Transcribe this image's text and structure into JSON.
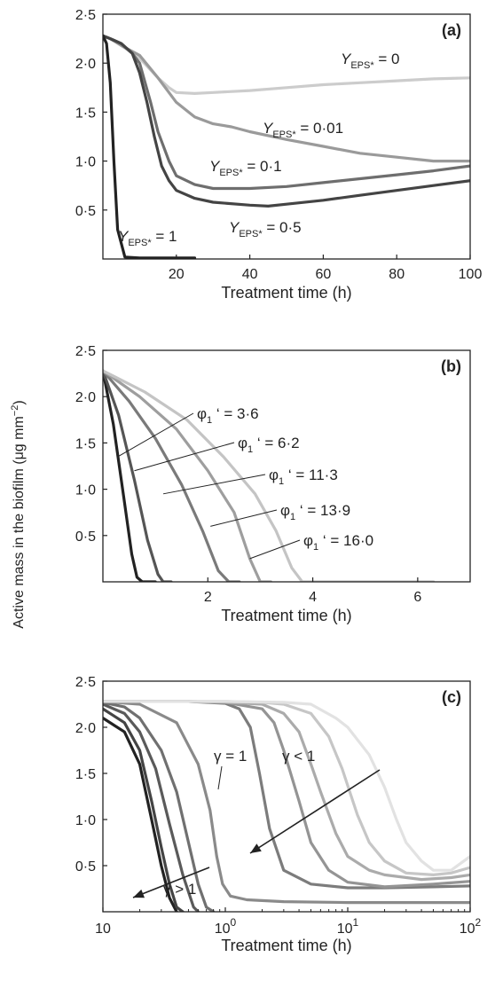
{
  "ylabel": "Active mass in the biofilm (μg mm",
  "ylabel_sup": "−2",
  "ylabel_close": ")",
  "colors": {
    "axis": "#222222",
    "series_dark": "#222222",
    "series_light": "#e6e6e6"
  },
  "chart_data": [
    {
      "type": "line",
      "panel_label": "(a)",
      "xlabel": "Treatment time (h)",
      "xlim": [
        0,
        100
      ],
      "ylim": [
        0,
        2.5
      ],
      "x_scale": "linear",
      "xticks": [
        20,
        40,
        60,
        80,
        100
      ],
      "xtick_labels": [
        "20",
        "40",
        "60",
        "80",
        "100"
      ],
      "yticks": [
        0.5,
        1.0,
        1.5,
        2.0,
        2.5
      ],
      "ytick_labels": [
        "0·5",
        "1·0",
        "1·5",
        "2·0",
        "2·5"
      ],
      "series": [
        {
          "label_main": "Y",
          "label_sub": "EPS*",
          "label_value": "= 0",
          "color": "#cccccc",
          "x": [
            0,
            2,
            5,
            10,
            15,
            18,
            20,
            25,
            30,
            40,
            50,
            60,
            70,
            80,
            90,
            100
          ],
          "y": [
            2.28,
            2.25,
            2.18,
            2.05,
            1.85,
            1.75,
            1.7,
            1.69,
            1.7,
            1.72,
            1.75,
            1.78,
            1.8,
            1.82,
            1.84,
            1.85
          ]
        },
        {
          "label_main": "Y",
          "label_sub": "EPS*",
          "label_value": "= 0·01",
          "color": "#9a9a9a",
          "x": [
            0,
            2,
            5,
            10,
            15,
            20,
            25,
            30,
            35,
            40,
            50,
            60,
            70,
            80,
            90,
            100
          ],
          "y": [
            2.28,
            2.25,
            2.18,
            2.08,
            1.85,
            1.6,
            1.45,
            1.38,
            1.35,
            1.3,
            1.22,
            1.15,
            1.08,
            1.04,
            1.0,
            1.0
          ]
        },
        {
          "label_main": "Y",
          "label_sub": "EPS*",
          "label_value": "= 0·1",
          "color": "#6e6e6e",
          "x": [
            0,
            2,
            5,
            8,
            10,
            13,
            15,
            18,
            20,
            25,
            30,
            40,
            50,
            60,
            70,
            80,
            90,
            100
          ],
          "y": [
            2.28,
            2.25,
            2.2,
            2.1,
            2.0,
            1.6,
            1.3,
            1.0,
            0.85,
            0.76,
            0.72,
            0.72,
            0.74,
            0.78,
            0.82,
            0.86,
            0.9,
            0.95
          ]
        },
        {
          "label_main": "Y",
          "label_sub": "EPS*",
          "label_value": "= 0·5",
          "color": "#444444",
          "x": [
            0,
            2,
            5,
            8,
            10,
            12,
            14,
            16,
            18,
            20,
            25,
            30,
            40,
            45,
            50,
            60,
            70,
            80,
            90,
            100
          ],
          "y": [
            2.28,
            2.25,
            2.2,
            2.1,
            1.9,
            1.6,
            1.25,
            0.95,
            0.8,
            0.7,
            0.62,
            0.58,
            0.55,
            0.54,
            0.56,
            0.6,
            0.65,
            0.7,
            0.75,
            0.8
          ]
        },
        {
          "label_main": "Y",
          "label_sub": "EPS*",
          "label_value": "= 1",
          "color": "#222222",
          "x": [
            0,
            1,
            2,
            3,
            4,
            6,
            10,
            20,
            25
          ],
          "y": [
            2.28,
            2.2,
            1.8,
            1.0,
            0.3,
            0.02,
            0.01,
            0.01,
            0.01
          ]
        }
      ]
    },
    {
      "type": "line",
      "panel_label": "(b)",
      "xlabel": "Treatment time (h)",
      "xlim": [
        0,
        7
      ],
      "ylim": [
        0,
        2.5
      ],
      "x_scale": "linear",
      "xticks": [
        2,
        4,
        6
      ],
      "xtick_labels": [
        "2",
        "4",
        "6"
      ],
      "yticks": [
        0.5,
        1.0,
        1.5,
        2.0,
        2.5
      ],
      "ytick_labels": [
        "0·5",
        "1·0",
        "1·5",
        "2·0",
        "2·5"
      ],
      "series": [
        {
          "label_main": "φ",
          "label_sub": "1",
          "label_value": "‘ = 3·6",
          "color": "#222222",
          "x": [
            0,
            0.2,
            0.4,
            0.55,
            0.65,
            0.75,
            1.0
          ],
          "y": [
            2.28,
            1.7,
            0.9,
            0.3,
            0.05,
            0.0,
            0.0
          ]
        },
        {
          "label_main": "φ",
          "label_sub": "1",
          "label_value": "‘ = 6·2",
          "color": "#555555",
          "x": [
            0,
            0.3,
            0.6,
            0.85,
            1.05,
            1.15,
            1.3
          ],
          "y": [
            2.28,
            1.8,
            1.1,
            0.45,
            0.08,
            0.0,
            0.0
          ]
        },
        {
          "label_main": "φ",
          "label_sub": "1",
          "label_value": "‘ = 11·3",
          "color": "#7a7a7a",
          "x": [
            0,
            0.5,
            1.0,
            1.5,
            1.9,
            2.2,
            2.4,
            2.6
          ],
          "y": [
            2.28,
            1.95,
            1.55,
            1.05,
            0.55,
            0.12,
            0.0,
            0.0
          ]
        },
        {
          "label_main": "φ",
          "label_sub": "1",
          "label_value": "‘ = 13·9",
          "color": "#9e9e9e",
          "x": [
            0,
            0.7,
            1.4,
            2.0,
            2.5,
            2.8,
            3.0,
            3.2
          ],
          "y": [
            2.28,
            2.0,
            1.65,
            1.2,
            0.75,
            0.25,
            0.0,
            0.0
          ]
        },
        {
          "label_main": "φ",
          "label_sub": "1",
          "label_value": "‘ = 16·0",
          "color": "#c4c4c4",
          "x": [
            0,
            0.8,
            1.6,
            2.3,
            2.9,
            3.3,
            3.6,
            3.8,
            4.5,
            6.3
          ],
          "y": [
            2.28,
            2.05,
            1.75,
            1.35,
            0.95,
            0.55,
            0.15,
            0.0,
            0.0,
            0.0
          ]
        }
      ]
    },
    {
      "type": "line",
      "panel_label": "(c)",
      "xlabel": "Treatment time (h)",
      "xlim": [
        0.1,
        100
      ],
      "ylim": [
        0,
        2.5
      ],
      "x_scale": "log",
      "xticks": [
        0.1,
        1,
        10,
        100
      ],
      "xtick_labels": [
        {
          "base": "10",
          "exp": ""
        },
        {
          "base": "10",
          "exp": "0"
        },
        {
          "base": "10",
          "exp": "1"
        },
        {
          "base": "10",
          "exp": "2"
        }
      ],
      "yticks": [
        0.5,
        1.0,
        1.5,
        2.0,
        2.5
      ],
      "ytick_labels": [
        "0·5",
        "1·0",
        "1·5",
        "2·0",
        "2·5"
      ],
      "annotations": {
        "gamma_eq": "γ = 1",
        "gamma_lt": "γ < 1",
        "gamma_gt": "γ > 1"
      },
      "series": [
        {
          "name": "",
          "color": "#222222",
          "x": [
            0.1,
            0.15,
            0.2,
            0.25,
            0.3,
            0.35,
            0.4
          ],
          "y": [
            2.1,
            1.95,
            1.6,
            1.0,
            0.5,
            0.15,
            0.0
          ]
        },
        {
          "name": "",
          "color": "#444444",
          "x": [
            0.1,
            0.15,
            0.2,
            0.25,
            0.3,
            0.35,
            0.4,
            0.45
          ],
          "y": [
            2.2,
            2.05,
            1.75,
            1.2,
            0.7,
            0.3,
            0.05,
            0.0
          ]
        },
        {
          "name": "",
          "color": "#5a5a5a",
          "x": [
            0.1,
            0.15,
            0.2,
            0.27,
            0.35,
            0.45,
            0.55,
            0.6
          ],
          "y": [
            2.25,
            2.15,
            1.95,
            1.55,
            0.95,
            0.4,
            0.05,
            0.0
          ]
        },
        {
          "name": "",
          "color": "#707070",
          "x": [
            0.1,
            0.15,
            0.2,
            0.3,
            0.4,
            0.5,
            0.6,
            0.7,
            0.8
          ],
          "y": [
            2.27,
            2.22,
            2.1,
            1.75,
            1.3,
            0.75,
            0.3,
            0.05,
            0.0
          ]
        },
        {
          "name": "",
          "color": "#8a8a8a",
          "x": [
            0.1,
            0.2,
            0.4,
            0.6,
            0.75,
            0.85,
            0.95,
            1.1,
            1.5,
            3,
            10,
            30,
            100
          ],
          "y": [
            2.28,
            2.25,
            2.05,
            1.6,
            1.1,
            0.6,
            0.3,
            0.17,
            0.13,
            0.11,
            0.1,
            0.1,
            0.1
          ]
        },
        {
          "name": "",
          "color": "#7c7c7c",
          "x": [
            0.1,
            0.5,
            1,
            1.3,
            1.6,
            1.9,
            2.3,
            3,
            5,
            10,
            20,
            50,
            100
          ],
          "y": [
            2.28,
            2.28,
            2.26,
            2.2,
            2.0,
            1.5,
            0.9,
            0.45,
            0.3,
            0.26,
            0.26,
            0.27,
            0.28
          ]
        },
        {
          "name": "",
          "color": "#949494",
          "x": [
            0.1,
            0.5,
            1,
            2,
            2.5,
            3,
            4,
            5,
            7,
            10,
            20,
            50,
            100
          ],
          "y": [
            2.28,
            2.28,
            2.27,
            2.2,
            2.05,
            1.75,
            1.2,
            0.75,
            0.45,
            0.32,
            0.27,
            0.3,
            0.33
          ]
        },
        {
          "name": "",
          "color": "#ababab",
          "x": [
            0.1,
            0.5,
            1,
            2,
            3,
            4,
            5,
            6,
            8,
            10,
            15,
            20,
            40,
            70,
            100
          ],
          "y": [
            2.28,
            2.28,
            2.27,
            2.25,
            2.15,
            1.95,
            1.6,
            1.3,
            0.85,
            0.6,
            0.45,
            0.4,
            0.35,
            0.37,
            0.4
          ]
        },
        {
          "name": "",
          "color": "#c6c6c6",
          "x": [
            0.1,
            1,
            2,
            3,
            5,
            7,
            9,
            12,
            15,
            20,
            30,
            50,
            70,
            100
          ],
          "y": [
            2.28,
            2.28,
            2.27,
            2.25,
            2.15,
            1.9,
            1.55,
            1.05,
            0.75,
            0.55,
            0.42,
            0.4,
            0.42,
            0.48
          ]
        },
        {
          "name": "",
          "color": "#e2e2e2",
          "x": [
            0.1,
            1,
            3,
            5,
            8,
            10,
            15,
            20,
            25,
            30,
            40,
            50,
            70,
            100
          ],
          "y": [
            2.28,
            2.28,
            2.27,
            2.25,
            2.1,
            2.0,
            1.7,
            1.35,
            1.0,
            0.75,
            0.55,
            0.45,
            0.45,
            0.6
          ]
        }
      ]
    }
  ]
}
